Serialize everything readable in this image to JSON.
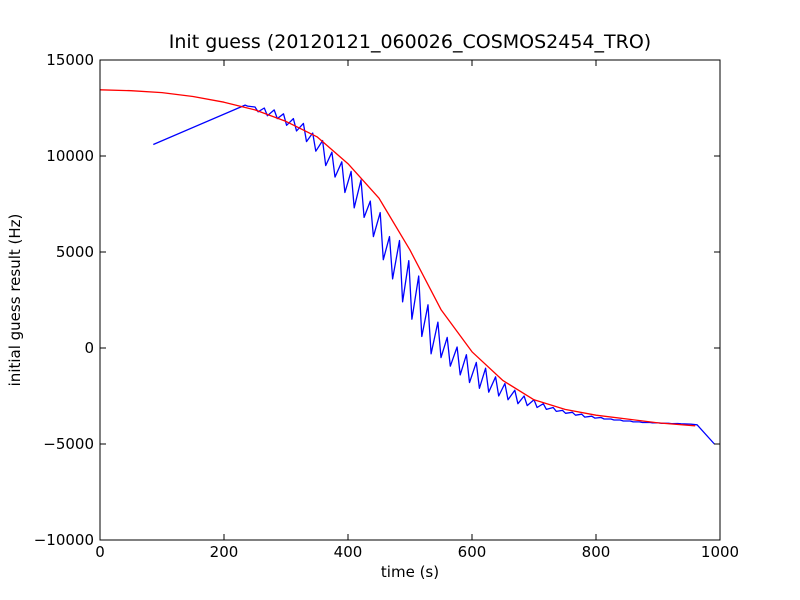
{
  "chart_data": {
    "type": "line",
    "title": "Init guess (20120121_060026_COSMOS2454_TRO)",
    "xlabel": "time (s)",
    "ylabel": "initial guess result (Hz)",
    "xlim": [
      0,
      1000
    ],
    "ylim": [
      -10000,
      15000
    ],
    "x_ticks": [
      "0",
      "200",
      "400",
      "600",
      "800",
      "1000"
    ],
    "y_ticks": [
      "15000",
      "10000",
      "5000",
      "0",
      "−5000",
      "−10000"
    ],
    "grid": false,
    "legend": "none",
    "series": [
      {
        "color": "#0000ff",
        "x": [
          86,
          234,
          238,
          250,
          255,
          265,
          270,
          281,
          286,
          296,
          301,
          312,
          317,
          328,
          333,
          343,
          348,
          359,
          364,
          374,
          379,
          390,
          395,
          405,
          410,
          421,
          426,
          436,
          441,
          452,
          457,
          467,
          472,
          483,
          488,
          498,
          503,
          514,
          519,
          529,
          534,
          545,
          550,
          560,
          565,
          576,
          581,
          591,
          596,
          607,
          612,
          622,
          627,
          638,
          643,
          653,
          658,
          669,
          674,
          684,
          689,
          700,
          705,
          715,
          720,
          731,
          736,
          746,
          751,
          762,
          767,
          777,
          782,
          793,
          798,
          808,
          813,
          824,
          829,
          839,
          844,
          855,
          860,
          870,
          875,
          886,
          891,
          901,
          906,
          917,
          922,
          932,
          937,
          948,
          953,
          963,
          991
        ],
        "y": [
          10600,
          12650,
          12600,
          12550,
          12300,
          12500,
          12100,
          12400,
          11950,
          12200,
          11600,
          11950,
          11300,
          11700,
          10750,
          11200,
          10250,
          10800,
          9500,
          10200,
          8900,
          9700,
          8100,
          9200,
          7300,
          8750,
          6800,
          7650,
          5800,
          7050,
          4600,
          5800,
          3600,
          5600,
          2400,
          4550,
          1500,
          3750,
          600,
          2250,
          -300,
          1350,
          -500,
          550,
          -950,
          50,
          -1400,
          -350,
          -1800,
          -750,
          -2100,
          -1050,
          -2300,
          -1500,
          -2500,
          -1850,
          -2700,
          -2200,
          -2900,
          -2500,
          -3000,
          -2700,
          -3100,
          -2900,
          -3200,
          -3100,
          -3300,
          -3250,
          -3400,
          -3350,
          -3500,
          -3450,
          -3600,
          -3550,
          -3650,
          -3620,
          -3700,
          -3700,
          -3750,
          -3750,
          -3800,
          -3800,
          -3850,
          -3850,
          -3880,
          -3870,
          -3900,
          -3900,
          -3920,
          -3920,
          -3940,
          -3930,
          -3950,
          -3960,
          -3970,
          -4000,
          -5000
        ]
      },
      {
        "color": "#ff0000",
        "x": [
          0,
          50,
          100,
          150,
          200,
          250,
          300,
          350,
          400,
          450,
          500,
          550,
          600,
          650,
          700,
          750,
          800,
          850,
          900,
          960
        ],
        "y": [
          13450,
          13400,
          13300,
          13100,
          12800,
          12400,
          11800,
          11000,
          9600,
          7800,
          5100,
          2000,
          -200,
          -1700,
          -2700,
          -3200,
          -3500,
          -3700,
          -3900,
          -4050
        ]
      }
    ]
  }
}
